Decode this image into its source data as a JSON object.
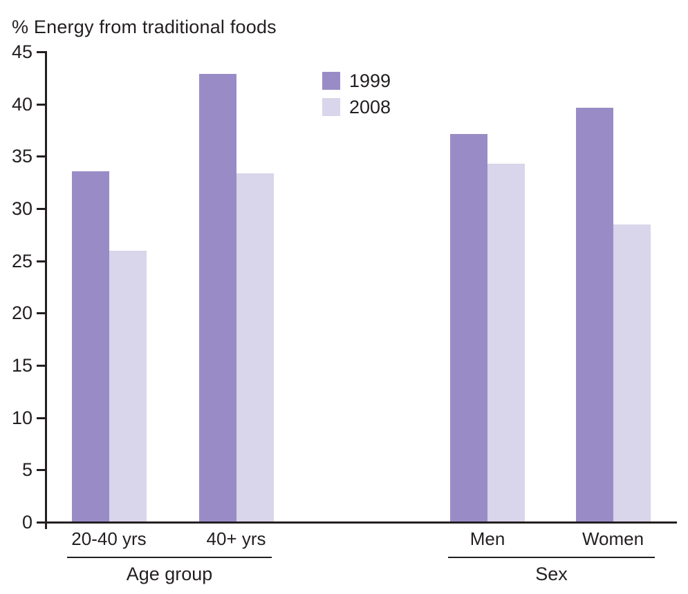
{
  "title": "% Energy from traditional foods",
  "colors": {
    "series_1999": "#998cc6",
    "series_2008": "#d9d5ea",
    "axis": "#231f20",
    "background": "#ffffff"
  },
  "legend": {
    "items": [
      {
        "label": "1999",
        "color": "#998cc6"
      },
      {
        "label": "2008",
        "color": "#d9d5ea"
      }
    ]
  },
  "chart_data": {
    "type": "bar",
    "title": "% Energy from traditional foods",
    "ylabel": "% Energy from traditional foods",
    "xlabel": "",
    "ylim": [
      0,
      45
    ],
    "ytick_step": 5,
    "yticks": [
      0,
      5,
      10,
      15,
      20,
      25,
      30,
      35,
      40,
      45
    ],
    "grid": false,
    "legend_position": "top-center",
    "series": [
      {
        "name": "1999",
        "color": "#998cc6"
      },
      {
        "name": "2008",
        "color": "#d9d5ea"
      }
    ],
    "groups": [
      {
        "label": "Age group",
        "categories": [
          {
            "label": "20-40 yrs",
            "values": [
              33.5,
              25.9
            ]
          },
          {
            "label": "40+ yrs",
            "values": [
              42.8,
              33.3
            ]
          }
        ]
      },
      {
        "label": "Sex",
        "categories": [
          {
            "label": "Men",
            "values": [
              37.1,
              34.2
            ]
          },
          {
            "label": "Women",
            "values": [
              39.6,
              28.4
            ]
          }
        ]
      }
    ]
  }
}
